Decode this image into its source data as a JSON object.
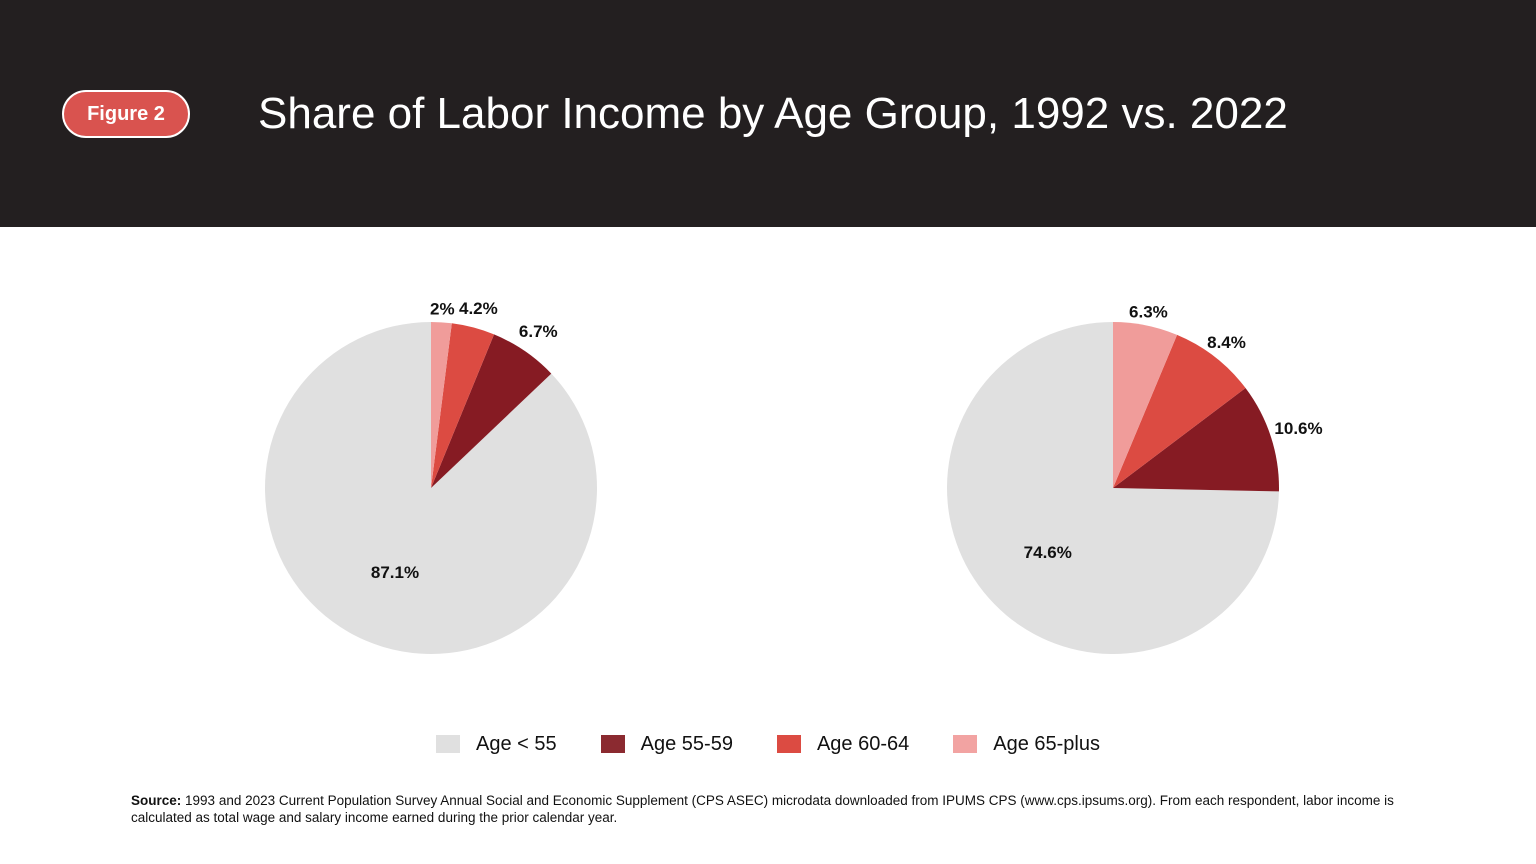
{
  "header": {
    "badge": "Figure 2",
    "title": "Share of Labor Income by Age Group, 1992 vs. 2022"
  },
  "colors": {
    "header_bg": "#231f20",
    "badge": "#d9534f"
  },
  "chart_data": [
    {
      "type": "pie",
      "title": "",
      "start_angle": "12 o'clock, clockwise (reverse order)",
      "slices": [
        {
          "label": "Age < 55",
          "value": 87.1,
          "display": "87.1%",
          "color": "#e0e0e0"
        },
        {
          "label": "Age 55-59",
          "value": 6.7,
          "display": "6.7%",
          "color": "#861b23"
        },
        {
          "label": "Age 60-64",
          "value": 4.2,
          "display": "4.2%",
          "color": "#dc4b42"
        },
        {
          "label": "Age 65-plus",
          "value": 2.0,
          "display": "2%",
          "color": "#f09c9a"
        }
      ]
    },
    {
      "type": "pie",
      "title": "",
      "start_angle": "12 o'clock, clockwise (reverse order)",
      "slices": [
        {
          "label": "Age < 55",
          "value": 74.6,
          "display": "74.6%",
          "color": "#e0e0e0"
        },
        {
          "label": "Age 55-59",
          "value": 10.6,
          "display": "10.6%",
          "color": "#861b23"
        },
        {
          "label": "Age 60-64",
          "value": 8.4,
          "display": "8.4%",
          "color": "#dc4b42"
        },
        {
          "label": "Age 65-plus",
          "value": 6.3,
          "display": "6.3%",
          "color": "#f09c9a"
        }
      ]
    }
  ],
  "legend": {
    "items": [
      {
        "label": "Age < 55",
        "color": "#e0e0e0"
      },
      {
        "label": "Age 55-59",
        "color": "#8b2a30"
      },
      {
        "label": "Age 60-64",
        "color": "#dc4b42"
      },
      {
        "label": "Age 65-plus",
        "color": "#f2a3a2"
      }
    ]
  },
  "source": {
    "lead": "Source:",
    "text": "1993 and 2023 Current Population Survey Annual Social and Economic Supplement (CPS ASEC) microdata downloaded from IPUMS CPS (www.cps.ipsums.org). From each respondent, labor income is calculated as total wage and salary income earned during the prior calendar year."
  }
}
